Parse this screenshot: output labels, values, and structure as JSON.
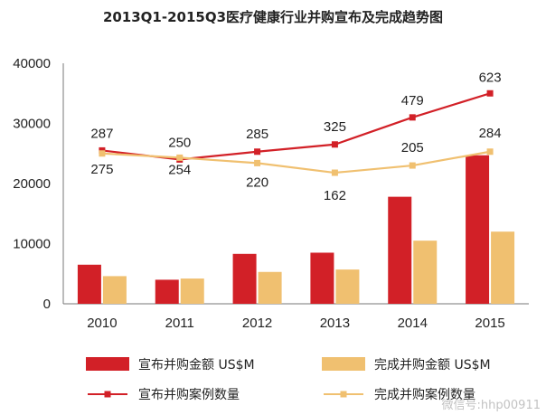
{
  "title": "2013Q1-2015Q3医疗健康行业并购宣布及完成趋势图",
  "watermark": "微信号:hhp00911",
  "chart_data": {
    "type": "bar",
    "categories": [
      "2010",
      "2011",
      "2012",
      "2013",
      "2014",
      "2015"
    ],
    "ylim": [
      0,
      40000
    ],
    "yticks": [
      0,
      10000,
      20000,
      30000,
      40000
    ],
    "series": [
      {
        "name": "宣布并购金额 US$M",
        "kind": "bar",
        "color": "#d22027",
        "values": [
          6500,
          4000,
          8300,
          8500,
          17800,
          24700
        ]
      },
      {
        "name": "完成并购金额 US$M",
        "kind": "bar",
        "color": "#f0c070",
        "values": [
          4600,
          4200,
          5300,
          5700,
          10500,
          12000
        ]
      },
      {
        "name": "宣布并购案例数量",
        "kind": "line",
        "color": "#d22027",
        "values": [
          287,
          250,
          285,
          325,
          479,
          623
        ],
        "plotted": [
          25500,
          24000,
          25300,
          26500,
          31000,
          35000
        ]
      },
      {
        "name": "完成并购案例数量",
        "kind": "line",
        "color": "#f0c070",
        "values": [
          275,
          254,
          220,
          162,
          205,
          284
        ],
        "plotted": [
          25000,
          24300,
          23400,
          21800,
          23000,
          25300
        ]
      }
    ]
  }
}
